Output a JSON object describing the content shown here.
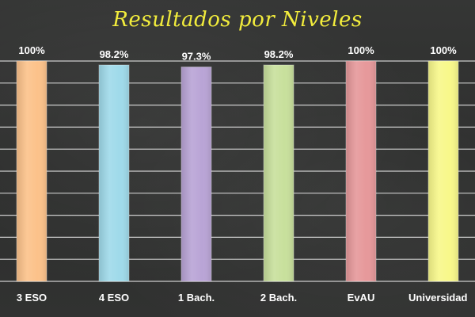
{
  "chart_data": {
    "type": "bar",
    "title": "Resultados por Niveles",
    "categories": [
      "3 ESO",
      "4 ESO",
      "1 Bach.",
      "2 Bach.",
      "EvAU",
      "Universidad"
    ],
    "values": [
      100,
      98.2,
      97.3,
      98.2,
      100,
      100
    ],
    "value_labels": [
      "100%",
      "98.2%",
      "97.3%",
      "98.2%",
      "100%",
      "100%"
    ],
    "colors": [
      "#fcc28a",
      "#9fdaea",
      "#b9a4d6",
      "#c8e09c",
      "#e6989a",
      "#f8f88a"
    ],
    "ylim": [
      0,
      100
    ],
    "grid": true,
    "legend": "none",
    "background": "#2e2f2e",
    "title_color": "#f2ec3c"
  }
}
